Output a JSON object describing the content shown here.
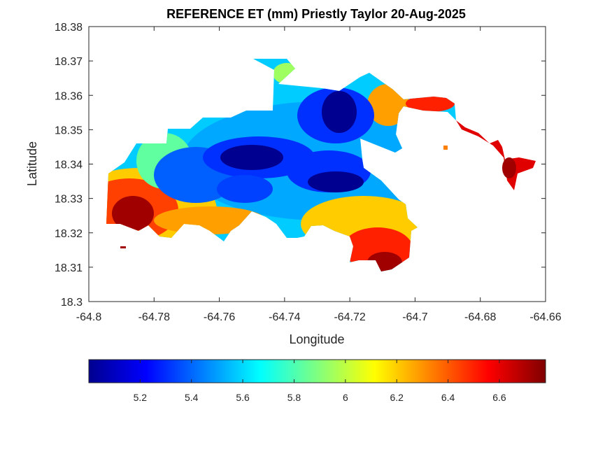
{
  "chart_data": {
    "type": "heatmap",
    "title": "REFERENCE ET (mm) Priestly Taylor 20-Aug-2025",
    "xlabel": "Longitude",
    "ylabel": "Latitude",
    "xlim": [
      -64.8,
      -64.66
    ],
    "ylim": [
      18.3,
      18.38
    ],
    "x_ticks": [
      "-64.8",
      "-64.78",
      "-64.76",
      "-64.74",
      "-64.72",
      "-64.7",
      "-64.68",
      "-64.66"
    ],
    "y_ticks": [
      "18.3",
      "18.31",
      "18.32",
      "18.33",
      "18.34",
      "18.35",
      "18.36",
      "18.37",
      "18.38"
    ],
    "colorbar": {
      "colormap": "jet",
      "range": [
        5.0,
        6.78
      ],
      "ticks": [
        "5.2",
        "5.4",
        "5.6",
        "5.8",
        "6",
        "6.2",
        "6.4",
        "6.6"
      ],
      "orientation": "horizontal",
      "placement": "bottom"
    },
    "grid": false,
    "regions": [
      {
        "name": "",
        "lon": -64.748,
        "lat": 18.341,
        "value": 5.05
      },
      {
        "name": "",
        "lon": -64.726,
        "lat": 18.335,
        "value": 5.05
      },
      {
        "name": "",
        "lon": -64.724,
        "lat": 18.356,
        "value": 5.1
      },
      {
        "name": "",
        "lon": -64.754,
        "lat": 18.333,
        "value": 5.3
      },
      {
        "name": "",
        "lon": -64.738,
        "lat": 18.362,
        "value": 5.5
      },
      {
        "name": "",
        "lon": -64.772,
        "lat": 18.338,
        "value": 5.8
      },
      {
        "name": "",
        "lon": -64.712,
        "lat": 18.326,
        "value": 5.9
      },
      {
        "name": "",
        "lon": -64.709,
        "lat": 18.356,
        "value": 6.2
      },
      {
        "name": "",
        "lon": -64.785,
        "lat": 18.334,
        "value": 6.3
      },
      {
        "name": "",
        "lon": -64.789,
        "lat": 18.325,
        "value": 6.75
      },
      {
        "name": "",
        "lon": -64.712,
        "lat": 18.313,
        "value": 6.6
      },
      {
        "name": "",
        "lon": -64.671,
        "lat": 18.338,
        "value": 6.65
      }
    ]
  }
}
